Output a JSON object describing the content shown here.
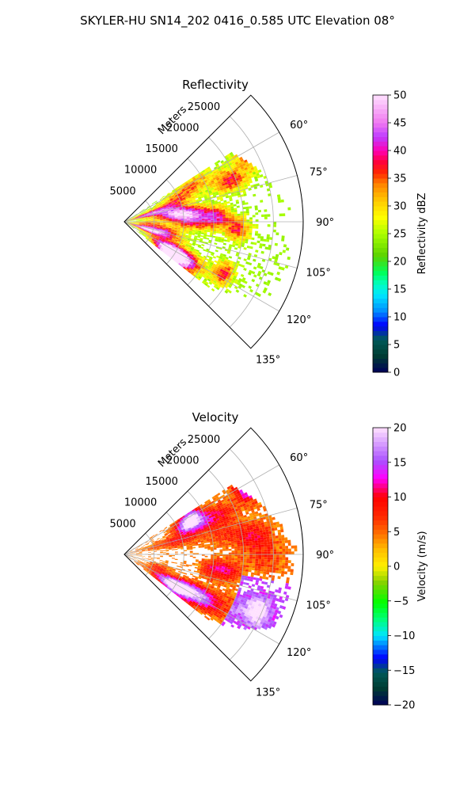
{
  "figure": {
    "suptitle": "SKYLER-HU  SN14_202  0416_0.585 UTC Elevation 08°"
  },
  "chart_data": [
    {
      "type": "heatmap",
      "projection": "polar-sector",
      "title": "Reflectivity",
      "radial_axis_label": "Meters",
      "radial_ticks": [
        5000,
        10000,
        15000,
        20000,
        25000
      ],
      "radial_tick_labels": [
        "5000",
        "10000",
        "15000",
        "20000",
        "25000"
      ],
      "rlim": [
        0,
        30000
      ],
      "angle_ticks": [
        60,
        75,
        90,
        105,
        120,
        135
      ],
      "angle_tick_labels": [
        "60°",
        "75°",
        "90°",
        "105°",
        "120°",
        "135°"
      ],
      "theta_range_deg": [
        45,
        135
      ],
      "grid": true,
      "colorbar": {
        "label": "Reflectivity dBZ",
        "range": [
          0,
          50
        ],
        "ticks": [
          0,
          5,
          10,
          15,
          20,
          25,
          30,
          35,
          40,
          45,
          50
        ],
        "tick_labels": [
          "0",
          "5",
          "10",
          "15",
          "20",
          "25",
          "30",
          "35",
          "40",
          "45",
          "50"
        ],
        "colormap": "pyart_NWSRef"
      }
    },
    {
      "type": "heatmap",
      "projection": "polar-sector",
      "title": "Velocity",
      "radial_axis_label": "Meters",
      "radial_ticks": [
        5000,
        10000,
        15000,
        20000,
        25000
      ],
      "radial_tick_labels": [
        "5000",
        "10000",
        "15000",
        "20000",
        "25000"
      ],
      "rlim": [
        0,
        30000
      ],
      "angle_ticks": [
        60,
        75,
        90,
        105,
        120,
        135
      ],
      "angle_tick_labels": [
        "60°",
        "75°",
        "90°",
        "105°",
        "120°",
        "135°"
      ],
      "theta_range_deg": [
        45,
        135
      ],
      "grid": true,
      "colorbar": {
        "label": "Velocity (m/s)",
        "range": [
          -20,
          20
        ],
        "ticks": [
          -20,
          -15,
          -10,
          -5,
          0,
          5,
          10,
          15,
          20
        ],
        "tick_labels": [
          "−20",
          "−15",
          "−10",
          "−5",
          "0",
          "5",
          "10",
          "15",
          "20"
        ],
        "colormap": "pyart_NWSVel"
      }
    }
  ]
}
